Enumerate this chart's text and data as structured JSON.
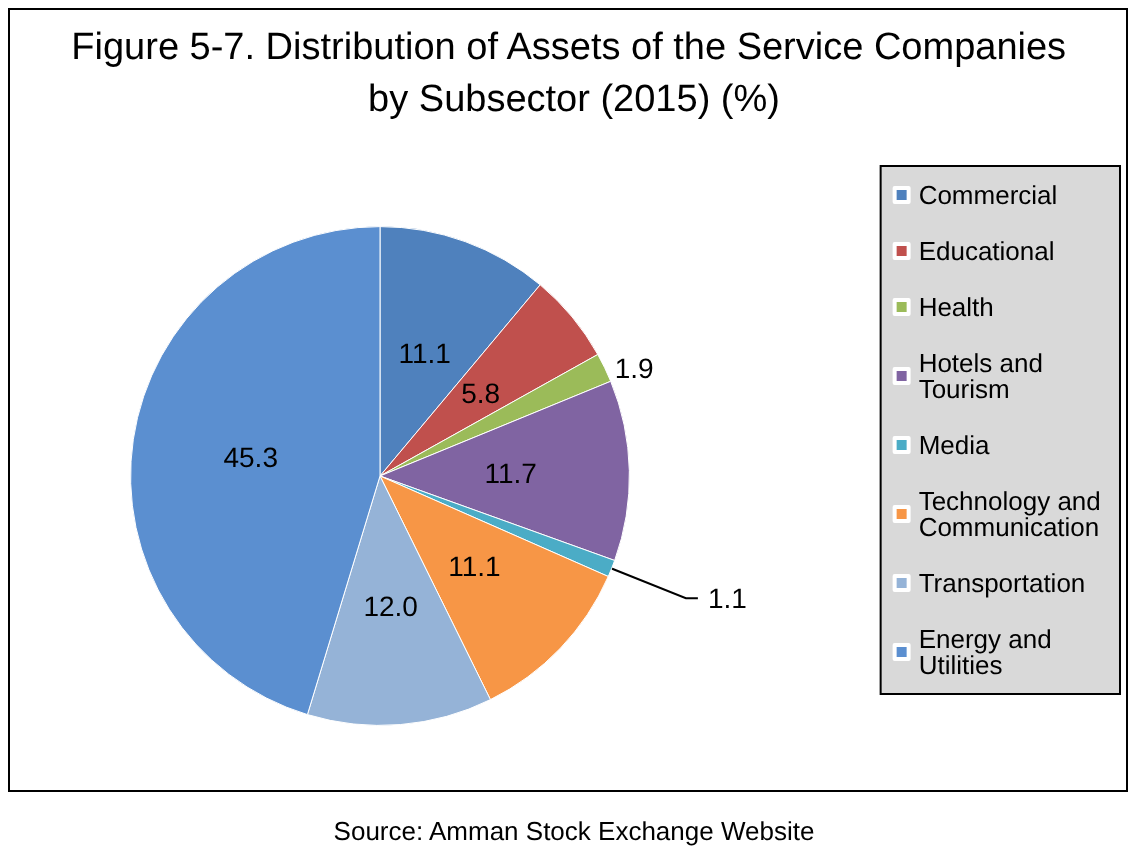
{
  "chart_data": {
    "type": "pie",
    "title": "Figure 5-7. Distribution of Assets of the Service Companies by Subsector (2015) (%)",
    "categories": [
      "Commercial",
      "Educational",
      "Health",
      "Hotels and Tourism",
      "Media",
      "Technology and Communication",
      "Transportation",
      "Energy and Utilities"
    ],
    "values": [
      11.1,
      5.8,
      1.9,
      11.7,
      1.1,
      11.1,
      12.0,
      45.3
    ],
    "colors": [
      "#4f81bd",
      "#c0504d",
      "#9bbb59",
      "#8064a2",
      "#4bacc6",
      "#f79646",
      "#95b3d7",
      "#5b8fd0"
    ],
    "value_labels": [
      "11.1",
      "5.8",
      "1.9",
      "11.7",
      "1.1",
      "11.1",
      "12.0",
      "45.3"
    ],
    "legend": "right",
    "annotations": [
      "Source: Amman Stock Exchange Website"
    ]
  }
}
